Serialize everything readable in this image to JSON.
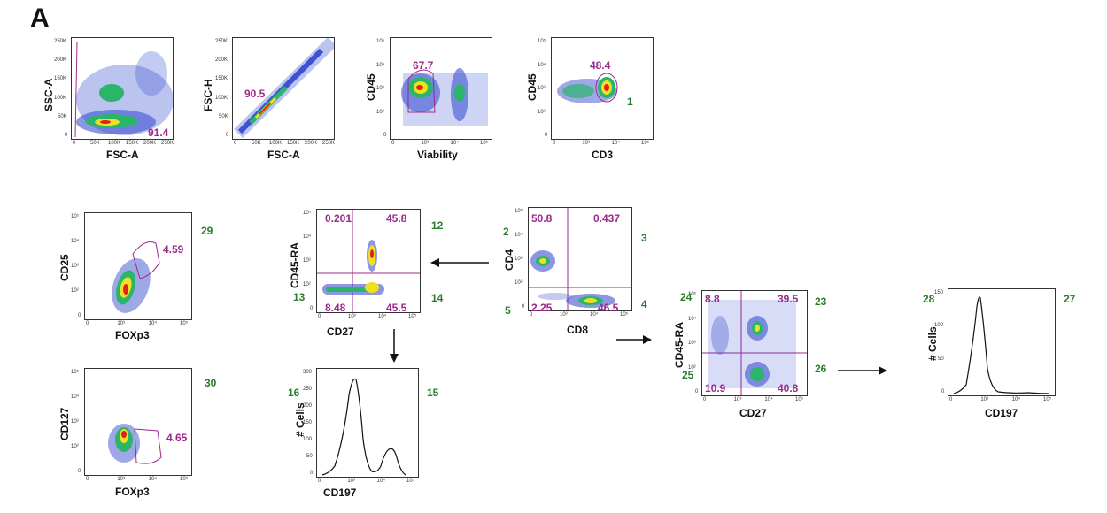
{
  "figure": {
    "panel_label": "A",
    "colors": {
      "gate": "#9b2a8c",
      "population": "#2a7d2a",
      "density_low": "#2b3fc9",
      "density_mid": "#2bb56a",
      "density_high": "#f0e020",
      "density_peak": "#e02020"
    },
    "plots": {
      "p1": {
        "xlabel": "FSC-A",
        "ylabel": "SSC-A",
        "gate": "91.4",
        "xticks": [
          "0",
          "50K",
          "100K",
          "150K",
          "200K",
          "250K"
        ],
        "yticks": [
          "250K",
          "200K",
          "150K",
          "100K",
          "50K",
          "0"
        ]
      },
      "p2": {
        "xlabel": "FSC-A",
        "ylabel": "FSC-H",
        "gate": "90.5",
        "xticks": [
          "0",
          "50K",
          "100K",
          "150K",
          "200K",
          "250K"
        ],
        "yticks": [
          "250K",
          "200K",
          "150K",
          "100K",
          "50K",
          "0"
        ]
      },
      "p3": {
        "xlabel": "Viability",
        "ylabel": "CD45",
        "gate": "67.7",
        "xticks": [
          "0",
          "10³",
          "10⁴",
          "10⁵"
        ],
        "yticks": [
          "10⁵",
          "10⁴",
          "10³",
          "10²",
          "0"
        ]
      },
      "p4": {
        "xlabel": "CD3",
        "ylabel": "CD45",
        "gate": "48.4",
        "pop": "1",
        "xticks": [
          "0",
          "10³",
          "10⁴",
          "10⁵"
        ],
        "yticks": [
          "10⁵",
          "10⁴",
          "10³",
          "10²",
          "0"
        ]
      },
      "p5": {
        "xlabel": "FOXp3",
        "ylabel": "CD25",
        "gate": "4.59",
        "pop": "29",
        "xticks": [
          "0",
          "10³",
          "10⁴",
          "10⁵"
        ],
        "yticks": [
          "10⁵",
          "10⁴",
          "10³",
          "10²",
          "0"
        ]
      },
      "p6": {
        "xlabel": "FOXp3",
        "ylabel": "CD127",
        "gate": "4.65",
        "pop": "30",
        "xticks": [
          "0",
          "10³",
          "10⁴",
          "10⁵"
        ],
        "yticks": [
          "10⁵",
          "10⁴",
          "10³",
          "10²",
          "0"
        ]
      },
      "p7": {
        "xlabel": "CD27",
        "ylabel": "CD45-RA",
        "q_tl": "0.201",
        "q_tr": "45.8",
        "q_bl": "8.48",
        "q_br": "45.5",
        "pop_tr": "12",
        "pop_bl": "13",
        "pop_br": "14",
        "xticks": [
          "0",
          "10³",
          "10⁴",
          "10⁵"
        ],
        "yticks": [
          "10⁵",
          "10⁴",
          "10³",
          "10²",
          "0"
        ]
      },
      "p8": {
        "xlabel": "CD8",
        "ylabel": "CD4",
        "q_tl": "50.8",
        "q_tr": "0.437",
        "q_bl": "2.25",
        "q_br": "46.5",
        "pop_tl": "2",
        "pop_tr": "3",
        "pop_bl": "5",
        "pop_br": "4",
        "xticks": [
          "0",
          "10³",
          "10⁴",
          "10⁵"
        ],
        "yticks": [
          "10⁵",
          "10⁴",
          "10³",
          "10²",
          "0"
        ]
      },
      "p9": {
        "xlabel": "CD197",
        "ylabel": "# Cells",
        "pop_left": "16",
        "pop_right": "15",
        "xticks": [
          "0",
          "10³",
          "10⁴",
          "10⁵"
        ],
        "yticks": [
          "300",
          "250",
          "200",
          "150",
          "100",
          "50",
          "0"
        ]
      },
      "p10": {
        "xlabel": "CD27",
        "ylabel": "CD45-RA",
        "q_tl": "8.8",
        "q_tr": "39.5",
        "q_bl": "10.9",
        "q_br": "40.8",
        "pop_tl": "24",
        "pop_tr": "23",
        "pop_bl": "25",
        "pop_br": "26",
        "xticks": [
          "0",
          "10³",
          "10⁴",
          "10⁵"
        ],
        "yticks": [
          "10⁵",
          "10⁴",
          "10³",
          "10²",
          "0"
        ]
      },
      "p11": {
        "xlabel": "CD197",
        "ylabel": "# Cells",
        "pop_left": "28",
        "pop_right": "27",
        "xticks": [
          "0",
          "10³",
          "10⁴",
          "10⁵"
        ],
        "yticks": [
          "150",
          "100",
          "50",
          "0"
        ]
      }
    }
  }
}
